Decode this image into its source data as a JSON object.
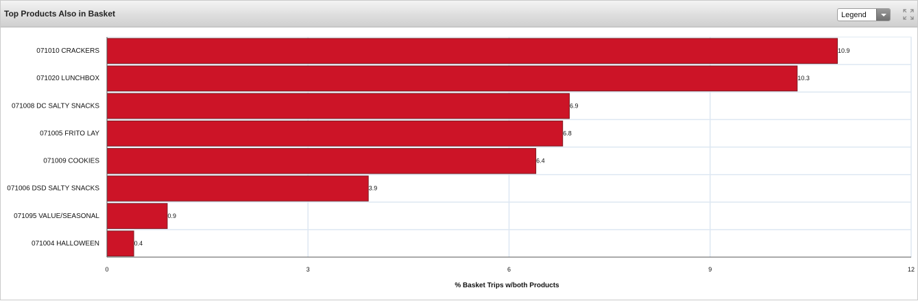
{
  "header": {
    "title": "Top Products Also in Basket",
    "legend_label": "Legend"
  },
  "colors": {
    "bar": "#cc1427",
    "bar_border": "#7d1a22",
    "grid": "#dde7f2"
  },
  "icons": {
    "expand": "expand-icon",
    "dropdown": "chevron-down-icon"
  },
  "chart_data": {
    "type": "bar",
    "orientation": "horizontal",
    "categories": [
      "071010 CRACKERS",
      "071020 LUNCHBOX",
      "071008 DC SALTY SNACKS",
      "071005 FRITO LAY",
      "071009 COOKIES",
      "071006 DSD SALTY SNACKS",
      "071095 VALUE/SEASONAL",
      "071004 HALLOWEEN"
    ],
    "values": [
      10.9,
      10.3,
      6.9,
      6.8,
      6.4,
      3.9,
      0.9,
      0.4
    ],
    "value_labels": [
      "10.9",
      "10.3",
      "6.9",
      "6.8",
      "6.4",
      "3.9",
      "0.9",
      "0.4"
    ],
    "xlabel": "% Basket Trips w/both Products",
    "ylabel": "",
    "xlim": [
      0,
      12
    ],
    "xticks": [
      0,
      3,
      6,
      9,
      12
    ],
    "grid": true,
    "legend": "none"
  }
}
